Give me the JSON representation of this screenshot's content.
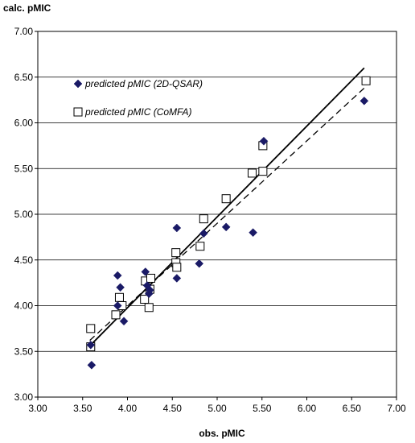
{
  "chart_data": {
    "type": "scatter",
    "xlabel": "obs. pMIC",
    "ylabel": "calc. pMIC",
    "xlim": [
      3.0,
      7.0
    ],
    "ylim": [
      3.0,
      7.0
    ],
    "x_ticks": [
      "3.00",
      "3.50",
      "4.00",
      "4.50",
      "5.00",
      "5.50",
      "6.00",
      "6.50",
      "7.00"
    ],
    "y_ticks": [
      "3.00",
      "3.50",
      "4.00",
      "4.50",
      "5.00",
      "5.50",
      "6.00",
      "6.50",
      "7.00"
    ],
    "grid": "horizontal",
    "legend_position": "top-left",
    "series": [
      {
        "name": "predicted pMIC (2D-QSAR)",
        "marker": "filled-diamond",
        "color": "#1a1a66",
        "points": [
          [
            3.59,
            3.57
          ],
          [
            3.6,
            3.35
          ],
          [
            3.89,
            4.33
          ],
          [
            3.89,
            4.0
          ],
          [
            3.92,
            4.2
          ],
          [
            3.96,
            3.83
          ],
          [
            4.2,
            4.37
          ],
          [
            4.22,
            4.22
          ],
          [
            4.24,
            4.13
          ],
          [
            4.25,
            4.17
          ],
          [
            4.55,
            4.85
          ],
          [
            4.55,
            4.3
          ],
          [
            4.8,
            4.46
          ],
          [
            4.85,
            4.79
          ],
          [
            5.1,
            4.86
          ],
          [
            5.4,
            4.8
          ],
          [
            5.52,
            5.8
          ],
          [
            6.64,
            6.24
          ]
        ]
      },
      {
        "name": "predicted pMIC (CoMFA)",
        "marker": "open-square",
        "color": "#000000",
        "points": [
          [
            3.59,
            3.75
          ],
          [
            3.59,
            3.55
          ],
          [
            3.87,
            3.9
          ],
          [
            3.91,
            4.09
          ],
          [
            3.94,
            4.0
          ],
          [
            4.19,
            4.07
          ],
          [
            4.2,
            4.27
          ],
          [
            4.24,
            3.98
          ],
          [
            4.25,
            4.18
          ],
          [
            4.26,
            4.3
          ],
          [
            4.54,
            4.58
          ],
          [
            4.54,
            4.47
          ],
          [
            4.55,
            4.42
          ],
          [
            4.81,
            4.65
          ],
          [
            4.85,
            4.95
          ],
          [
            5.1,
            5.17
          ],
          [
            5.39,
            5.45
          ],
          [
            5.51,
            5.47
          ],
          [
            5.51,
            5.75
          ],
          [
            6.66,
            6.46
          ]
        ]
      }
    ],
    "trendlines": [
      {
        "style": "solid",
        "x": [
          3.58,
          6.64
        ],
        "y": [
          3.56,
          6.6
        ]
      },
      {
        "style": "dashed",
        "x": [
          3.58,
          6.64
        ],
        "y": [
          3.62,
          6.38
        ]
      }
    ]
  }
}
